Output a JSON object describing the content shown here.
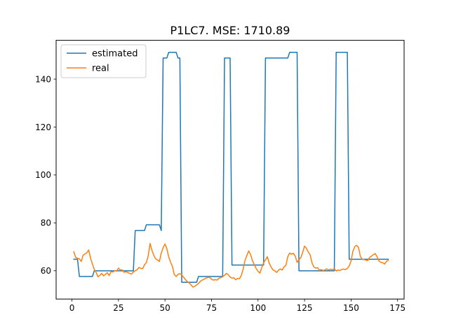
{
  "chart_data": {
    "type": "line",
    "title": "P1LC7. MSE: 1710.89",
    "xlabel": "",
    "ylabel": "",
    "xlim": [
      -8.5,
      178.5
    ],
    "ylim": [
      48.2,
      156.2
    ],
    "xticks": [
      0,
      25,
      50,
      75,
      100,
      125,
      150,
      175
    ],
    "yticks": [
      60,
      80,
      100,
      120,
      140
    ],
    "legend_position": "top-left",
    "grid": false,
    "series": [
      {
        "name": "estimated",
        "color": "#1f77b4",
        "points": [
          [
            1,
            64.8
          ],
          [
            3,
            64.8
          ],
          [
            4,
            57.6
          ],
          [
            11,
            57.6
          ],
          [
            12,
            60.0
          ],
          [
            33,
            60.0
          ],
          [
            34,
            76.8
          ],
          [
            39,
            76.8
          ],
          [
            40,
            79.2
          ],
          [
            47,
            79.2
          ],
          [
            48,
            76.8
          ],
          [
            49,
            148.8
          ],
          [
            51,
            148.8
          ],
          [
            52,
            151.2
          ],
          [
            56,
            151.2
          ],
          [
            57,
            148.8
          ],
          [
            58,
            148.8
          ],
          [
            59,
            55.2
          ],
          [
            63,
            55.2
          ],
          [
            67,
            55.2
          ],
          [
            68,
            57.6
          ],
          [
            81,
            57.6
          ],
          [
            82,
            148.8
          ],
          [
            84,
            148.8
          ],
          [
            85,
            148.8
          ],
          [
            86,
            62.4
          ],
          [
            103,
            62.4
          ],
          [
            104,
            148.8
          ],
          [
            116,
            148.8
          ],
          [
            117,
            151.2
          ],
          [
            121,
            151.2
          ],
          [
            122,
            60.0
          ],
          [
            141,
            60.0
          ],
          [
            142,
            151.2
          ],
          [
            148,
            151.2
          ],
          [
            149,
            64.8
          ],
          [
            170,
            64.8
          ]
        ]
      },
      {
        "name": "real",
        "color": "#ff7f0e",
        "points": [
          [
            1,
            67.9
          ],
          [
            2,
            65.6
          ],
          [
            3,
            65.2
          ],
          [
            4,
            65.0
          ],
          [
            5,
            63.9
          ],
          [
            6,
            66.5
          ],
          [
            7,
            67.0
          ],
          [
            8,
            67.5
          ],
          [
            9,
            68.7
          ],
          [
            10,
            65.2
          ],
          [
            11,
            62.8
          ],
          [
            12,
            60.6
          ],
          [
            13,
            59.3
          ],
          [
            14,
            57.5
          ],
          [
            15,
            58.1
          ],
          [
            16,
            58.9
          ],
          [
            17,
            57.9
          ],
          [
            18,
            58.5
          ],
          [
            19,
            59.2
          ],
          [
            20,
            58.0
          ],
          [
            21,
            59.6
          ],
          [
            22,
            59.5
          ],
          [
            23,
            60.0
          ],
          [
            24,
            59.9
          ],
          [
            25,
            61.1
          ],
          [
            26,
            60.3
          ],
          [
            27,
            60.4
          ],
          [
            28,
            59.4
          ],
          [
            29,
            59.6
          ],
          [
            30,
            59.3
          ],
          [
            31,
            58.9
          ],
          [
            32,
            58.6
          ],
          [
            33,
            59.5
          ],
          [
            34,
            60.0
          ],
          [
            35,
            60.4
          ],
          [
            36,
            61.4
          ],
          [
            37,
            61.0
          ],
          [
            38,
            60.9
          ],
          [
            39,
            62.5
          ],
          [
            40,
            63.4
          ],
          [
            41,
            66.3
          ],
          [
            42,
            71.4
          ],
          [
            43,
            68.5
          ],
          [
            44,
            66.4
          ],
          [
            45,
            65.0
          ],
          [
            46,
            64.5
          ],
          [
            47,
            63.9
          ],
          [
            48,
            67.4
          ],
          [
            49,
            69.6
          ],
          [
            50,
            71.2
          ],
          [
            51,
            69.2
          ],
          [
            52,
            65.8
          ],
          [
            53,
            63.6
          ],
          [
            54,
            61.8
          ],
          [
            55,
            58.4
          ],
          [
            56,
            57.6
          ],
          [
            57,
            58.5
          ],
          [
            58,
            58.8
          ],
          [
            59,
            58.3
          ],
          [
            60,
            57.3
          ],
          [
            61,
            56.3
          ],
          [
            62,
            55.5
          ],
          [
            63,
            54.9
          ],
          [
            64,
            54.1
          ],
          [
            65,
            53.2
          ],
          [
            66,
            53.5
          ],
          [
            67,
            54.1
          ],
          [
            68,
            54.7
          ],
          [
            69,
            55.6
          ],
          [
            70,
            56.1
          ],
          [
            71,
            56.5
          ],
          [
            72,
            56.9
          ],
          [
            73,
            57.2
          ],
          [
            74,
            57.3
          ],
          [
            75,
            56.5
          ],
          [
            76,
            56.1
          ],
          [
            77,
            56.3
          ],
          [
            78,
            56.1
          ],
          [
            79,
            56.9
          ],
          [
            80,
            57.1
          ],
          [
            81,
            57.5
          ],
          [
            82,
            58.1
          ],
          [
            83,
            58.9
          ],
          [
            84,
            58.4
          ],
          [
            85,
            57.4
          ],
          [
            86,
            56.9
          ],
          [
            87,
            57.1
          ],
          [
            88,
            56.2
          ],
          [
            89,
            56.8
          ],
          [
            90,
            56.7
          ],
          [
            91,
            58.0
          ],
          [
            92,
            60.7
          ],
          [
            93,
            64.3
          ],
          [
            94,
            66.4
          ],
          [
            95,
            68.3
          ],
          [
            96,
            66.8
          ],
          [
            97,
            64.2
          ],
          [
            98,
            62.6
          ],
          [
            99,
            60.9
          ],
          [
            100,
            59.8
          ],
          [
            101,
            59.0
          ],
          [
            102,
            61.3
          ],
          [
            103,
            63.4
          ],
          [
            104,
            64.5
          ],
          [
            105,
            65.9
          ],
          [
            106,
            63.2
          ],
          [
            107,
            61.6
          ],
          [
            108,
            60.4
          ],
          [
            109,
            60.0
          ],
          [
            110,
            59.3
          ],
          [
            111,
            60.2
          ],
          [
            112,
            60.8
          ],
          [
            113,
            60.3
          ],
          [
            114,
            61.6
          ],
          [
            115,
            62.3
          ],
          [
            116,
            65.9
          ],
          [
            117,
            67.4
          ],
          [
            118,
            66.9
          ],
          [
            119,
            67.3
          ],
          [
            120,
            66.1
          ],
          [
            121,
            63.5
          ],
          [
            122,
            64.6
          ],
          [
            123,
            65.5
          ],
          [
            124,
            67.7
          ],
          [
            125,
            70.3
          ],
          [
            126,
            69.4
          ],
          [
            127,
            67.8
          ],
          [
            128,
            66.7
          ],
          [
            129,
            63.3
          ],
          [
            130,
            61.6
          ],
          [
            131,
            61.1
          ],
          [
            132,
            61.3
          ],
          [
            133,
            60.2
          ],
          [
            134,
            60.5
          ],
          [
            135,
            60.1
          ],
          [
            136,
            60.4
          ],
          [
            137,
            60.8
          ],
          [
            138,
            60.3
          ],
          [
            139,
            60.7
          ],
          [
            140,
            60.4
          ],
          [
            141,
            60.9
          ],
          [
            142,
            59.9
          ],
          [
            143,
            60.3
          ],
          [
            144,
            60.1
          ],
          [
            145,
            60.6
          ],
          [
            146,
            60.7
          ],
          [
            147,
            60.5
          ],
          [
            148,
            61.0
          ],
          [
            149,
            62.0
          ],
          [
            150,
            64.1
          ],
          [
            151,
            68.2
          ],
          [
            152,
            70.1
          ],
          [
            153,
            70.6
          ],
          [
            154,
            69.7
          ],
          [
            155,
            66.0
          ],
          [
            156,
            64.8
          ],
          [
            157,
            64.7
          ],
          [
            158,
            64.4
          ],
          [
            159,
            64.3
          ],
          [
            160,
            65.6
          ],
          [
            161,
            66.1
          ],
          [
            162,
            66.7
          ],
          [
            163,
            67.2
          ],
          [
            164,
            65.8
          ],
          [
            165,
            64.1
          ],
          [
            166,
            63.5
          ],
          [
            167,
            63.4
          ],
          [
            168,
            62.8
          ],
          [
            169,
            63.9
          ],
          [
            170,
            64.4
          ]
        ]
      }
    ]
  }
}
